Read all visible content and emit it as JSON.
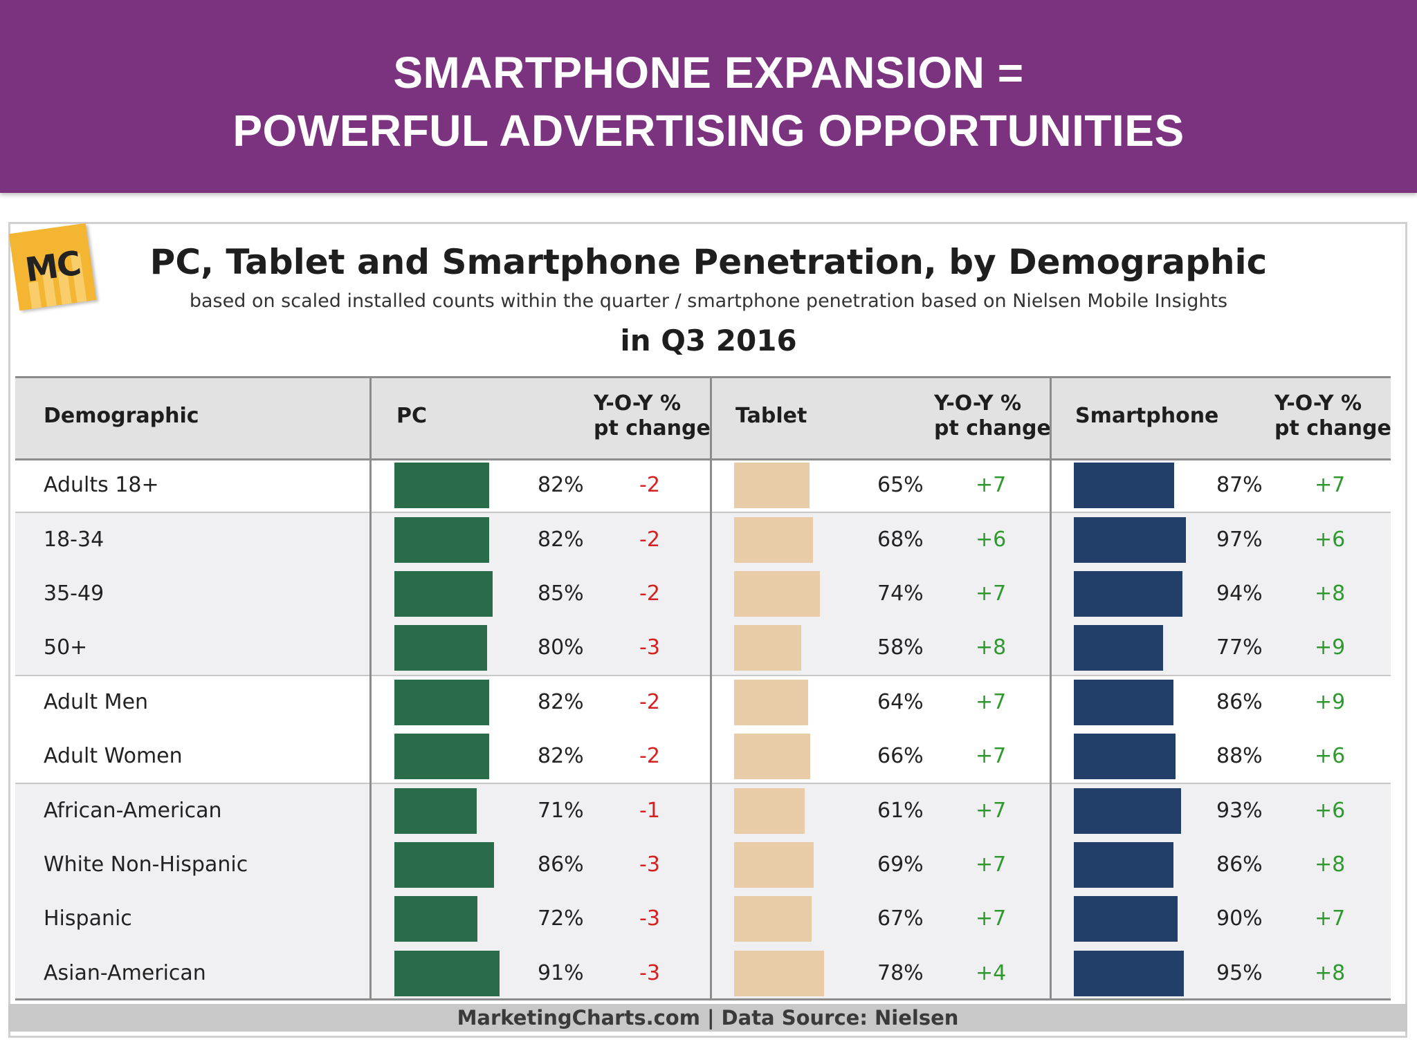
{
  "banner": {
    "line1": "SMARTPHONE EXPANSION =",
    "line2": "POWERFUL ADVERTISING OPPORTUNITIES"
  },
  "logo": {
    "text": "MC"
  },
  "chart_data": {
    "type": "table",
    "title": "PC, Tablet and Smartphone Penetration, by Demographic",
    "subtitle": "based on scaled installed counts within the quarter / smartphone penetration based on Nielsen Mobile Insights",
    "period": "in Q3 2016",
    "columns": {
      "demographic": "Demographic",
      "pc": "PC",
      "tablet": "Tablet",
      "smartphone": "Smartphone",
      "yoy_line1": "Y-O-Y %",
      "yoy_line2": "pt change"
    },
    "unit": "%",
    "colors": {
      "pc": "#2a6b4a",
      "tablet": "#e8cba7",
      "smartphone": "#213f68",
      "negative": "#d42020",
      "positive": "#2e9a2e"
    },
    "groups": [
      [
        0
      ],
      [
        1,
        2,
        3
      ],
      [
        4,
        5
      ],
      [
        6,
        7,
        8,
        9
      ]
    ],
    "rows": [
      {
        "label": "Adults 18+",
        "pc": 82,
        "pc_change": "-2",
        "tablet": 65,
        "tablet_change": "+7",
        "smartphone": 87,
        "smartphone_change": "+7"
      },
      {
        "label": "18-34",
        "pc": 82,
        "pc_change": "-2",
        "tablet": 68,
        "tablet_change": "+6",
        "smartphone": 97,
        "smartphone_change": "+6"
      },
      {
        "label": "35-49",
        "pc": 85,
        "pc_change": "-2",
        "tablet": 74,
        "tablet_change": "+7",
        "smartphone": 94,
        "smartphone_change": "+8"
      },
      {
        "label": "50+",
        "pc": 80,
        "pc_change": "-3",
        "tablet": 58,
        "tablet_change": "+8",
        "smartphone": 77,
        "smartphone_change": "+9"
      },
      {
        "label": "Adult Men",
        "pc": 82,
        "pc_change": "-2",
        "tablet": 64,
        "tablet_change": "+7",
        "smartphone": 86,
        "smartphone_change": "+9"
      },
      {
        "label": "Adult Women",
        "pc": 82,
        "pc_change": "-2",
        "tablet": 66,
        "tablet_change": "+7",
        "smartphone": 88,
        "smartphone_change": "+6"
      },
      {
        "label": "African-American",
        "pc": 71,
        "pc_change": "-1",
        "tablet": 61,
        "tablet_change": "+7",
        "smartphone": 93,
        "smartphone_change": "+6"
      },
      {
        "label": "White Non-Hispanic",
        "pc": 86,
        "pc_change": "-3",
        "tablet": 69,
        "tablet_change": "+7",
        "smartphone": 86,
        "smartphone_change": "+8"
      },
      {
        "label": "Hispanic",
        "pc": 72,
        "pc_change": "-3",
        "tablet": 67,
        "tablet_change": "+7",
        "smartphone": 90,
        "smartphone_change": "+7"
      },
      {
        "label": "Asian-American",
        "pc": 91,
        "pc_change": "-3",
        "tablet": 78,
        "tablet_change": "+4",
        "smartphone": 95,
        "smartphone_change": "+8"
      }
    ],
    "footer_source": "MarketingCharts.com",
    "footer_data": "Data Source: Nielsen"
  }
}
